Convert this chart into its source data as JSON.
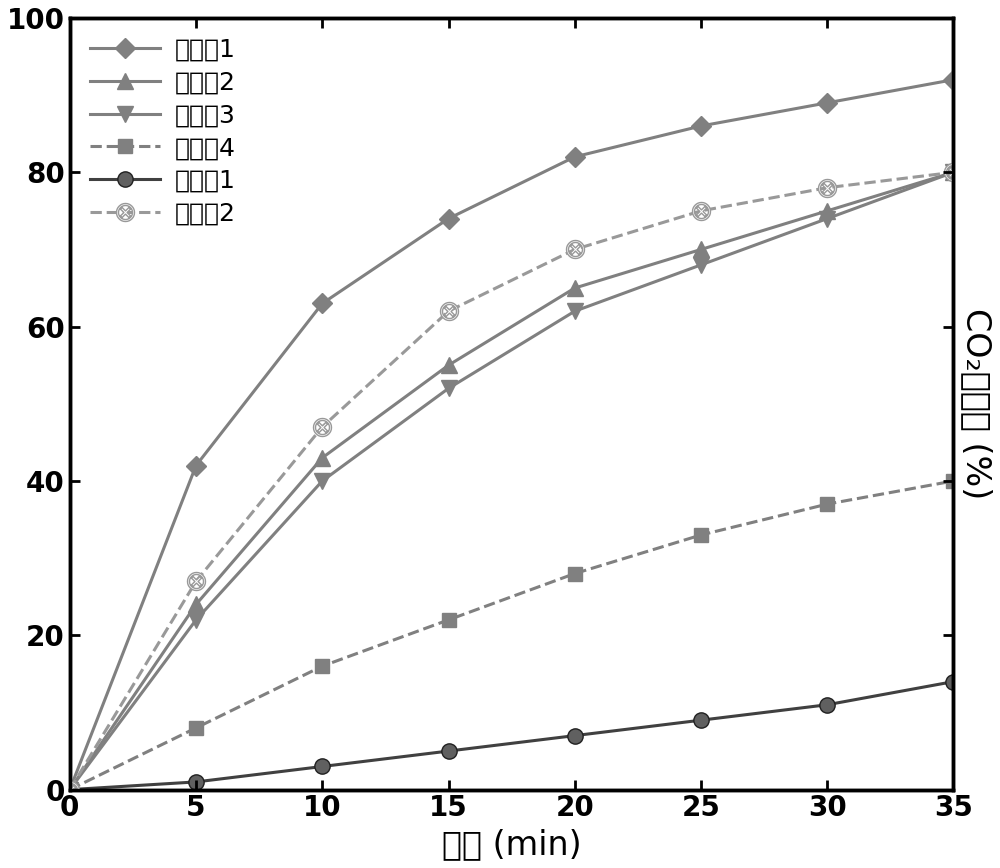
{
  "x": [
    0,
    5,
    10,
    15,
    20,
    25,
    30,
    35
  ],
  "series": [
    {
      "label": "实施例1",
      "y": [
        0,
        42,
        63,
        74,
        82,
        86,
        89,
        92
      ],
      "color": "#808080",
      "marker": "D",
      "marker_size": 10,
      "linestyle": "-",
      "linewidth": 2.2,
      "zorder": 5
    },
    {
      "label": "实施例2",
      "y": [
        0,
        24,
        43,
        55,
        65,
        70,
        75,
        80
      ],
      "color": "#808080",
      "marker": "^",
      "marker_size": 12,
      "linestyle": "-",
      "linewidth": 2.2,
      "zorder": 4
    },
    {
      "label": "实施例3",
      "y": [
        0,
        22,
        40,
        52,
        62,
        68,
        74,
        80
      ],
      "color": "#808080",
      "marker": "v",
      "marker_size": 12,
      "linestyle": "-",
      "linewidth": 2.2,
      "zorder": 3
    },
    {
      "label": "实施例4",
      "y": [
        0,
        8,
        16,
        22,
        28,
        33,
        37,
        40
      ],
      "color": "#808080",
      "marker": "s",
      "marker_size": 10,
      "linestyle": "--",
      "linewidth": 2.2,
      "zorder": 2
    },
    {
      "label": "对比例1",
      "y": [
        0,
        1,
        3,
        5,
        7,
        9,
        11,
        14
      ],
      "color": "#404040",
      "marker": "o",
      "marker_size": 11,
      "linestyle": "-",
      "linewidth": 2.2,
      "zorder": 1
    },
    {
      "label": "对比例2",
      "y": [
        0,
        27,
        47,
        62,
        70,
        75,
        78,
        80
      ],
      "color": "#999999",
      "marker": "x_circle",
      "marker_size": 13,
      "linestyle": "--",
      "linewidth": 2.2,
      "zorder": 6
    }
  ],
  "xlabel": "时间 (min)",
  "ylabel": "CO₂生成率 (%)",
  "xlim": [
    0,
    35
  ],
  "ylim": [
    0,
    100
  ],
  "xticks": [
    0,
    5,
    10,
    15,
    20,
    25,
    30,
    35
  ],
  "yticks": [
    0,
    20,
    40,
    60,
    80,
    100
  ],
  "legend_loc": "upper left",
  "font_color": "#000000",
  "background_color": "#ffffff",
  "border_linewidth": 2.5,
  "tick_fontsize": 20,
  "label_fontsize": 24,
  "legend_fontsize": 18
}
